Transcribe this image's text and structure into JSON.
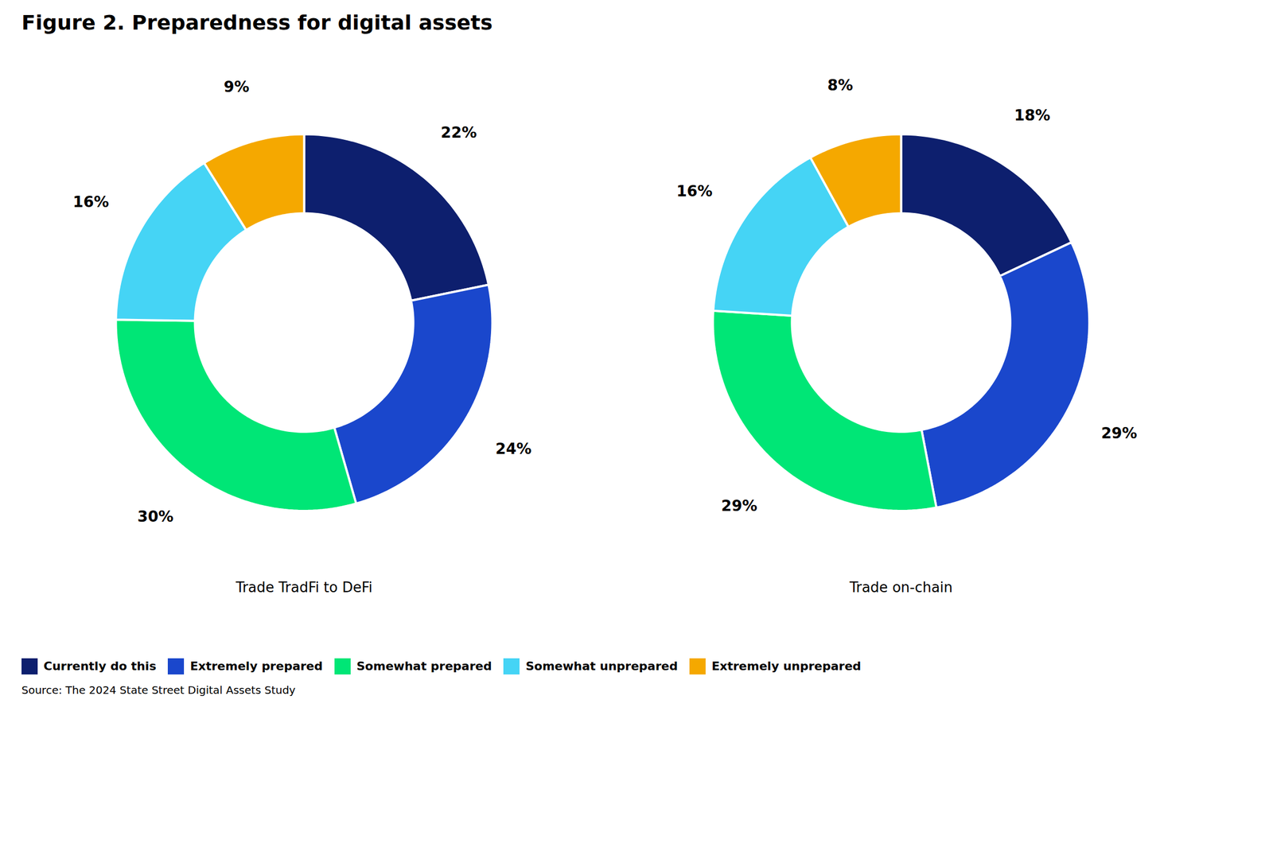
{
  "title": "Figure 2. Preparedness for digital assets",
  "source": "Source: The 2024 State Street Digital Assets Study",
  "chart_data": [
    {
      "type": "donut",
      "title": "Trade TradFi to DeFi",
      "categories": [
        "Currently do this",
        "Extremely prepared",
        "Somewhat prepared",
        "Somewhat unprepared",
        "Extremely unprepared"
      ],
      "values": [
        22,
        24,
        30,
        16,
        9
      ],
      "value_labels": [
        "22%",
        "24%",
        "30%",
        "16%",
        "9%"
      ],
      "colors": [
        "#0D1F6E",
        "#1A47CC",
        "#00E676",
        "#45D4F5",
        "#F5A800"
      ],
      "data_labels": true,
      "legend": "bottom"
    },
    {
      "type": "donut",
      "title": "Trade on-chain",
      "categories": [
        "Currently do this",
        "Extremely prepared",
        "Somewhat prepared",
        "Somewhat unprepared",
        "Extremely unprepared"
      ],
      "values": [
        18,
        29,
        29,
        16,
        8
      ],
      "value_labels": [
        "18%",
        "29%",
        "29%",
        "16%",
        "8%"
      ],
      "colors": [
        "#0D1F6E",
        "#1A47CC",
        "#00E676",
        "#45D4F5",
        "#F5A800"
      ],
      "data_labels": true,
      "legend": "bottom"
    }
  ]
}
